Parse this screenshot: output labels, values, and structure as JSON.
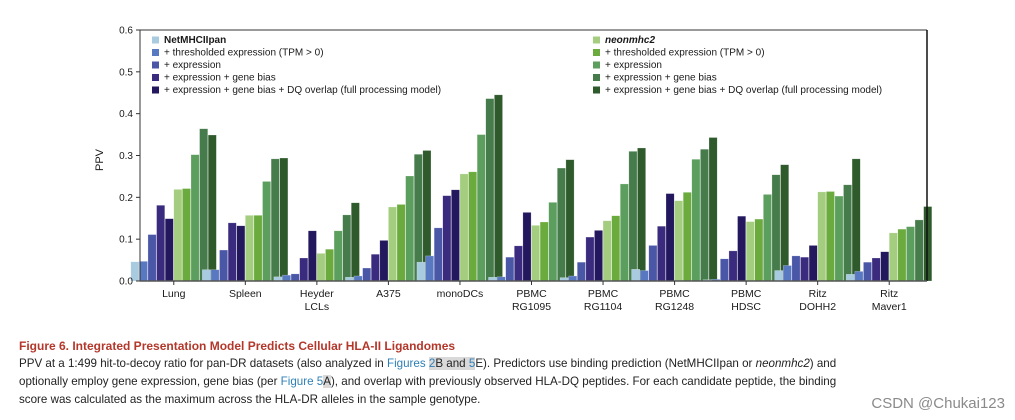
{
  "chart_data": {
    "type": "bar",
    "title": "",
    "xlabel": "",
    "ylabel": "PPV",
    "ylim": [
      0,
      0.6
    ],
    "yticks": [
      "0.0",
      "0.1",
      "0.2",
      "0.3",
      "0.4",
      "0.5",
      "0.6"
    ],
    "grid": false,
    "legend_placement": "top (two columns)",
    "categories": [
      [
        "Lung"
      ],
      [
        "Spleen"
      ],
      [
        "Heyder",
        "LCLs"
      ],
      [
        "A375"
      ],
      [
        "monoDCs"
      ],
      [
        "PBMC",
        "RG1095"
      ],
      [
        "PBMC",
        "RG1104"
      ],
      [
        "PBMC",
        "RG1248"
      ],
      [
        "PBMC",
        "HDSC"
      ],
      [
        "Ritz",
        "DOHH2"
      ],
      [
        "Ritz",
        "Maver1"
      ]
    ],
    "series": [
      {
        "name": "NetMHCIIpan",
        "group": "NetMHCIIpan",
        "bold": true,
        "italic": false,
        "color": "#a9cbe0",
        "values": [
          0.046,
          0.027,
          0.01,
          0.009,
          0.045,
          0.009,
          0.008,
          0.028,
          0.003,
          0.025,
          0.016
        ]
      },
      {
        "name": "+ thresholded expression (TPM > 0)",
        "group": "NetMHCIIpan",
        "color": "#5878c1",
        "values": [
          0.047,
          0.027,
          0.014,
          0.012,
          0.06,
          0.01,
          0.012,
          0.025,
          0.004,
          0.037,
          0.023
        ]
      },
      {
        "name": "+ expression",
        "group": "NetMHCIIpan",
        "color": "#4a56a6",
        "values": [
          0.111,
          0.074,
          0.017,
          0.031,
          0.127,
          0.057,
          0.045,
          0.085,
          0.053,
          0.06,
          0.045
        ]
      },
      {
        "name": "+ expression + gene bias",
        "group": "NetMHCIIpan",
        "color": "#3b2b7e",
        "values": [
          0.181,
          0.139,
          0.055,
          0.064,
          0.204,
          0.084,
          0.105,
          0.131,
          0.072,
          0.057,
          0.055
        ]
      },
      {
        "name": "+ expression + gene bias + DQ overlap (full processing model)",
        "group": "NetMHCIIpan",
        "color": "#23175e",
        "values": [
          0.149,
          0.132,
          0.12,
          0.097,
          0.218,
          0.164,
          0.121,
          0.209,
          0.155,
          0.085,
          0.07
        ]
      },
      {
        "name": "neonmhc2",
        "group": "neonmhc2",
        "bold": true,
        "italic": true,
        "color": "#a5cd80",
        "values": [
          0.219,
          0.157,
          0.066,
          0.177,
          0.256,
          0.133,
          0.144,
          0.192,
          0.142,
          0.213,
          0.115
        ]
      },
      {
        "name": "+ thresholded expression (TPM > 0)",
        "group": "neonmhc2",
        "color": "#6bab3d",
        "values": [
          0.221,
          0.157,
          0.076,
          0.183,
          0.261,
          0.141,
          0.156,
          0.212,
          0.148,
          0.214,
          0.124
        ]
      },
      {
        "name": "+ expression",
        "group": "neonmhc2",
        "color": "#5c9e5e",
        "values": [
          0.302,
          0.238,
          0.12,
          0.251,
          0.35,
          0.188,
          0.232,
          0.291,
          0.207,
          0.203,
          0.13
        ]
      },
      {
        "name": "+ expression + gene bias",
        "group": "neonmhc2",
        "color": "#467c4b",
        "values": [
          0.364,
          0.292,
          0.158,
          0.303,
          0.436,
          0.27,
          0.31,
          0.315,
          0.254,
          0.23,
          0.146
        ]
      },
      {
        "name": "+ expression + gene bias + DQ overlap (full processing model)",
        "group": "neonmhc2",
        "color": "#2f5a2c",
        "values": [
          0.349,
          0.294,
          0.187,
          0.312,
          0.445,
          0.29,
          0.318,
          0.343,
          0.278,
          0.292,
          0.178
        ]
      }
    ]
  },
  "caption": {
    "title": "Figure 6.  Integrated Presentation Model Predicts Cellular HLA-II Ligandomes",
    "line1_a": "PPV at a 1:499 hit-to-decoy ratio for pan-DR datasets (also analyzed in ",
    "line1_link1": "Figures ",
    "line1_hl1": "2",
    "line1_hl_mid": "B and ",
    "line1_hl2": "5",
    "line1_b": "E). Predictors use binding prediction (NetMHCIIpan or ",
    "line1_italic": "neonmhc2",
    "line1_c": ") and",
    "line2_a": "optionally employ gene expression, gene bias (per ",
    "line2_link": "Figure 5",
    "line2_hl": "A",
    "line2_b": "), and overlap with previously observed HLA-DQ peptides. For each candidate peptide, the binding",
    "line3": "score was calculated as the maximum across the HLA-DR alleles in the sample genotype."
  },
  "watermark": "CSDN @Chukai123"
}
